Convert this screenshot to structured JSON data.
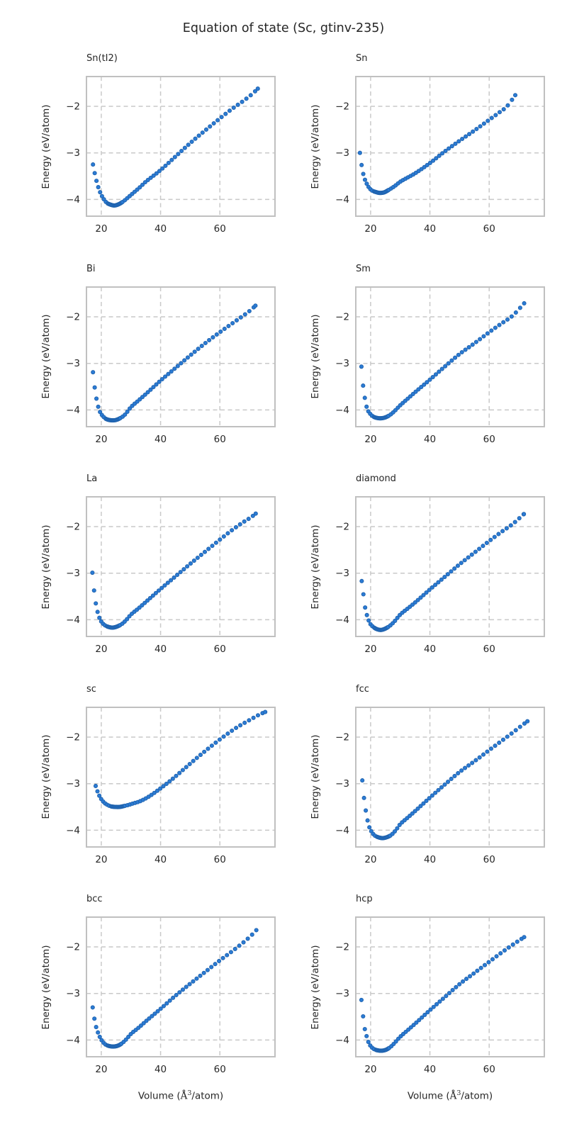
{
  "figure": {
    "title": "Equation of state (Sc, gtinv-235)"
  },
  "chart_data": {
    "type": "scatter",
    "title": "Equation of state (Sc, gtinv-235)",
    "layout": "5 rows x 2 columns, shared axes ranges",
    "xlabel": "Volume (Å³/atom)",
    "xlabel_parts": {
      "prefix": "Volume (",
      "angstrom": "Å",
      "sup": "3",
      "suffix": "/atom)"
    },
    "ylabel": "Energy (eV/atom)",
    "xlim": [
      15.0,
      78.6
    ],
    "ylim": [
      -4.36,
      -1.36
    ],
    "x_ticks": [
      20,
      40,
      60
    ],
    "y_ticks": [
      -2,
      -3,
      -4
    ],
    "x_tick_labels": [
      "20",
      "40",
      "60"
    ],
    "y_tick_labels": [
      "−2",
      "−3",
      "−4"
    ],
    "grid": "dashed gray",
    "legend": "none",
    "marker": {
      "color": "#2b7bd4",
      "edge": "#1f62ad",
      "radius": 2.6
    },
    "subplots": [
      {
        "label": "Sn(tI2)",
        "v0": 24.5,
        "points": [
          [
            17.2,
            -3.25
          ],
          [
            18,
            -3.5
          ],
          [
            18.8,
            -3.7
          ],
          [
            19.7,
            -3.86
          ],
          [
            20.7,
            -3.98
          ],
          [
            21.8,
            -4.07
          ],
          [
            23,
            -4.11
          ],
          [
            24.5,
            -4.13
          ],
          [
            26,
            -4.1
          ],
          [
            27.5,
            -4.04
          ],
          [
            29,
            -3.96
          ],
          [
            31,
            -3.85
          ],
          [
            33,
            -3.74
          ],
          [
            35,
            -3.62
          ],
          [
            40,
            -3.37
          ],
          [
            45,
            -3.08
          ],
          [
            50,
            -2.79
          ],
          [
            55,
            -2.52
          ],
          [
            60,
            -2.26
          ],
          [
            64,
            -2.06
          ],
          [
            68,
            -1.88
          ],
          [
            71,
            -1.73
          ],
          [
            72.8,
            -1.62
          ]
        ]
      },
      {
        "label": "Sn",
        "v0": 23.5,
        "points": [
          [
            16.4,
            -3.0
          ],
          [
            17.1,
            -3.32
          ],
          [
            17.8,
            -3.52
          ],
          [
            18.6,
            -3.65
          ],
          [
            19.5,
            -3.75
          ],
          [
            20.5,
            -3.81
          ],
          [
            21.7,
            -3.84
          ],
          [
            23,
            -3.86
          ],
          [
            24.5,
            -3.85
          ],
          [
            26,
            -3.8
          ],
          [
            28,
            -3.72
          ],
          [
            30,
            -3.62
          ],
          [
            32.5,
            -3.53
          ],
          [
            35,
            -3.44
          ],
          [
            40,
            -3.22
          ],
          [
            45,
            -2.97
          ],
          [
            50,
            -2.74
          ],
          [
            55,
            -2.52
          ],
          [
            60,
            -2.29
          ],
          [
            63,
            -2.15
          ],
          [
            66,
            -2.0
          ],
          [
            68.8,
            -1.76
          ]
        ]
      },
      {
        "label": "Bi",
        "v0": 23.8,
        "points": [
          [
            17.2,
            -3.19
          ],
          [
            17.8,
            -3.53
          ],
          [
            18.4,
            -3.77
          ],
          [
            19,
            -3.94
          ],
          [
            19.7,
            -4.06
          ],
          [
            20.5,
            -4.13
          ],
          [
            21.5,
            -4.19
          ],
          [
            23,
            -4.22
          ],
          [
            24.7,
            -4.22
          ],
          [
            26.3,
            -4.18
          ],
          [
            28,
            -4.1
          ],
          [
            30,
            -3.94
          ],
          [
            32.5,
            -3.8
          ],
          [
            35,
            -3.66
          ],
          [
            40,
            -3.37
          ],
          [
            45,
            -3.1
          ],
          [
            50,
            -2.83
          ],
          [
            55,
            -2.57
          ],
          [
            60,
            -2.33
          ],
          [
            64,
            -2.15
          ],
          [
            68,
            -1.97
          ],
          [
            70.5,
            -1.85
          ],
          [
            72,
            -1.76
          ]
        ]
      },
      {
        "label": "Sm",
        "v0": 23.5,
        "points": [
          [
            16.9,
            -3.07
          ],
          [
            17.4,
            -3.44
          ],
          [
            17.9,
            -3.68
          ],
          [
            18.4,
            -3.87
          ],
          [
            19,
            -4.0
          ],
          [
            19.8,
            -4.08
          ],
          [
            20.8,
            -4.14
          ],
          [
            22,
            -4.17
          ],
          [
            23.5,
            -4.18
          ],
          [
            25,
            -4.16
          ],
          [
            26.5,
            -4.11
          ],
          [
            28,
            -4.03
          ],
          [
            30,
            -3.9
          ],
          [
            32.5,
            -3.76
          ],
          [
            35,
            -3.62
          ],
          [
            40,
            -3.35
          ],
          [
            45,
            -3.07
          ],
          [
            50,
            -2.8
          ],
          [
            55,
            -2.57
          ],
          [
            60,
            -2.33
          ],
          [
            64,
            -2.15
          ],
          [
            68,
            -1.97
          ],
          [
            71.8,
            -1.71
          ]
        ]
      },
      {
        "label": "La",
        "v0": 23.7,
        "points": [
          [
            17,
            -2.99
          ],
          [
            17.6,
            -3.39
          ],
          [
            18.1,
            -3.63
          ],
          [
            18.7,
            -3.82
          ],
          [
            19.3,
            -3.95
          ],
          [
            20,
            -4.04
          ],
          [
            21,
            -4.11
          ],
          [
            22.2,
            -4.15
          ],
          [
            23.7,
            -4.17
          ],
          [
            25.2,
            -4.15
          ],
          [
            27,
            -4.09
          ],
          [
            28.5,
            -4.0
          ],
          [
            30,
            -3.89
          ],
          [
            32.5,
            -3.76
          ],
          [
            35,
            -3.62
          ],
          [
            40,
            -3.34
          ],
          [
            45,
            -3.07
          ],
          [
            50,
            -2.8
          ],
          [
            55,
            -2.54
          ],
          [
            60,
            -2.28
          ],
          [
            64,
            -2.08
          ],
          [
            68,
            -1.9
          ],
          [
            70.5,
            -1.8
          ],
          [
            72.1,
            -1.72
          ]
        ]
      },
      {
        "label": "diamond",
        "v0": 23.5,
        "points": [
          [
            17,
            -3.17
          ],
          [
            17.6,
            -3.47
          ],
          [
            18.1,
            -3.72
          ],
          [
            18.7,
            -3.89
          ],
          [
            19.3,
            -4.01
          ],
          [
            20,
            -4.1
          ],
          [
            21,
            -4.16
          ],
          [
            22,
            -4.2
          ],
          [
            23.5,
            -4.22
          ],
          [
            25,
            -4.19
          ],
          [
            26.5,
            -4.13
          ],
          [
            28,
            -4.04
          ],
          [
            30,
            -3.89
          ],
          [
            32.5,
            -3.76
          ],
          [
            35,
            -3.63
          ],
          [
            40,
            -3.35
          ],
          [
            45,
            -3.08
          ],
          [
            50,
            -2.81
          ],
          [
            55,
            -2.56
          ],
          [
            60,
            -2.31
          ],
          [
            64,
            -2.12
          ],
          [
            68,
            -1.94
          ],
          [
            71.7,
            -1.73
          ]
        ]
      },
      {
        "label": "sc",
        "v0": 25.5,
        "points": [
          [
            18.1,
            -3.05
          ],
          [
            18.8,
            -3.18
          ],
          [
            19.5,
            -3.28
          ],
          [
            20.3,
            -3.36
          ],
          [
            21.2,
            -3.42
          ],
          [
            22.2,
            -3.46
          ],
          [
            23.4,
            -3.49
          ],
          [
            24.8,
            -3.5
          ],
          [
            26.2,
            -3.5
          ],
          [
            27.7,
            -3.48
          ],
          [
            29,
            -3.46
          ],
          [
            31,
            -3.42
          ],
          [
            33,
            -3.38
          ],
          [
            36,
            -3.28
          ],
          [
            40,
            -3.1
          ],
          [
            44,
            -2.9
          ],
          [
            48,
            -2.68
          ],
          [
            52,
            -2.46
          ],
          [
            56,
            -2.25
          ],
          [
            60,
            -2.05
          ],
          [
            63,
            -1.91
          ],
          [
            66,
            -1.78
          ],
          [
            69,
            -1.67
          ],
          [
            71.5,
            -1.58
          ],
          [
            73.5,
            -1.51
          ],
          [
            75.3,
            -1.46
          ]
        ]
      },
      {
        "label": "fcc",
        "v0": 24.0,
        "points": [
          [
            17.2,
            -2.93
          ],
          [
            17.8,
            -3.32
          ],
          [
            18.4,
            -3.59
          ],
          [
            19,
            -3.8
          ],
          [
            19.6,
            -3.94
          ],
          [
            20.4,
            -4.04
          ],
          [
            21.3,
            -4.11
          ],
          [
            22.5,
            -4.15
          ],
          [
            24,
            -4.17
          ],
          [
            25.5,
            -4.15
          ],
          [
            27,
            -4.1
          ],
          [
            28.5,
            -4.0
          ],
          [
            30,
            -3.87
          ],
          [
            32.5,
            -3.73
          ],
          [
            35,
            -3.59
          ],
          [
            40,
            -3.3
          ],
          [
            45,
            -3.02
          ],
          [
            50,
            -2.75
          ],
          [
            55,
            -2.52
          ],
          [
            60,
            -2.28
          ],
          [
            64,
            -2.09
          ],
          [
            68,
            -1.9
          ],
          [
            71,
            -1.75
          ],
          [
            72.9,
            -1.66
          ]
        ]
      },
      {
        "label": "bcc",
        "v0": 24.2,
        "points": [
          [
            17.1,
            -3.3
          ],
          [
            17.7,
            -3.55
          ],
          [
            18.3,
            -3.73
          ],
          [
            19,
            -3.86
          ],
          [
            19.7,
            -3.96
          ],
          [
            20.5,
            -4.04
          ],
          [
            21.5,
            -4.1
          ],
          [
            22.7,
            -4.13
          ],
          [
            24.2,
            -4.14
          ],
          [
            25.7,
            -4.12
          ],
          [
            27,
            -4.07
          ],
          [
            28.5,
            -3.98
          ],
          [
            30,
            -3.87
          ],
          [
            32.5,
            -3.74
          ],
          [
            35,
            -3.6
          ],
          [
            40,
            -3.33
          ],
          [
            45,
            -3.05
          ],
          [
            50,
            -2.79
          ],
          [
            55,
            -2.54
          ],
          [
            60,
            -2.29
          ],
          [
            64,
            -2.1
          ],
          [
            68,
            -1.9
          ],
          [
            70.5,
            -1.76
          ],
          [
            72.3,
            -1.64
          ]
        ]
      },
      {
        "label": "hcp",
        "v0": 23.7,
        "points": [
          [
            16.9,
            -3.14
          ],
          [
            17.5,
            -3.51
          ],
          [
            18,
            -3.75
          ],
          [
            18.7,
            -3.93
          ],
          [
            19.3,
            -4.05
          ],
          [
            20,
            -4.13
          ],
          [
            21,
            -4.19
          ],
          [
            22.2,
            -4.22
          ],
          [
            23.7,
            -4.23
          ],
          [
            25.2,
            -4.21
          ],
          [
            26.7,
            -4.15
          ],
          [
            28,
            -4.07
          ],
          [
            30,
            -3.93
          ],
          [
            32.5,
            -3.79
          ],
          [
            35,
            -3.65
          ],
          [
            40,
            -3.36
          ],
          [
            45,
            -3.08
          ],
          [
            50,
            -2.8
          ],
          [
            55,
            -2.56
          ],
          [
            60,
            -2.32
          ],
          [
            64,
            -2.13
          ],
          [
            68,
            -1.95
          ],
          [
            71.8,
            -1.79
          ]
        ]
      }
    ],
    "style": {
      "grid_color": "#c9c9c9",
      "spine_color": "#c0c0c0",
      "text_color": "#262626",
      "background": "#ffffff"
    }
  }
}
